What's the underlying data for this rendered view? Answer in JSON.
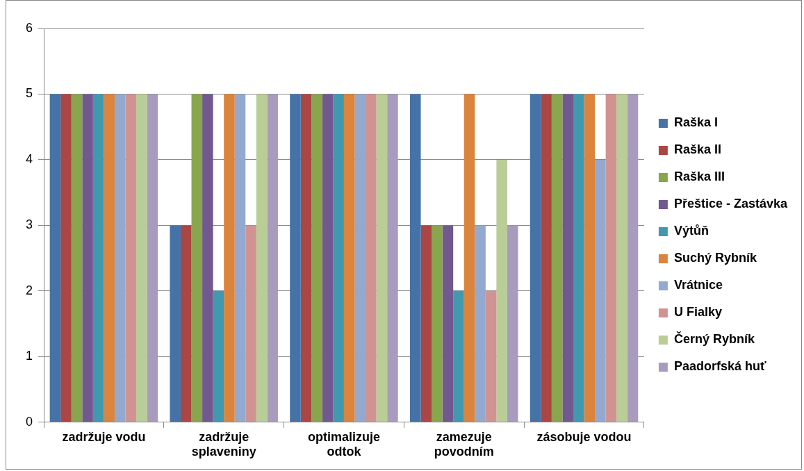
{
  "chart_data": {
    "type": "bar",
    "categories": [
      "zadržuje vodu",
      "zadržuje splaveniny",
      "optimalizuje odtok",
      "zamezuje povodním",
      "zásobuje vodou"
    ],
    "series": [
      {
        "name": "Raška I",
        "color": "#4572a7",
        "values": [
          5,
          3,
          5,
          5,
          5
        ]
      },
      {
        "name": "Raška II",
        "color": "#aa4643",
        "values": [
          5,
          3,
          5,
          3,
          5
        ]
      },
      {
        "name": "Raška III",
        "color": "#89a54e",
        "values": [
          5,
          5,
          5,
          3,
          5
        ]
      },
      {
        "name": "Přeštice - Zastávka",
        "color": "#71588f",
        "values": [
          5,
          5,
          5,
          3,
          5
        ]
      },
      {
        "name": "Výtůň",
        "color": "#4198af",
        "values": [
          5,
          2,
          5,
          2,
          5
        ]
      },
      {
        "name": "Suchý Rybník",
        "color": "#db843d",
        "values": [
          5,
          5,
          5,
          5,
          5
        ]
      },
      {
        "name": "Vrátnice",
        "color": "#93a9cf",
        "values": [
          5,
          5,
          5,
          3,
          4
        ]
      },
      {
        "name": "U Fialky",
        "color": "#d19392",
        "values": [
          5,
          3,
          5,
          2,
          5
        ]
      },
      {
        "name": "Černý Rybník",
        "color": "#b9cd96",
        "values": [
          5,
          5,
          5,
          4,
          5
        ]
      },
      {
        "name": "Paadorfská huť",
        "color": "#a99bbd",
        "values": [
          5,
          5,
          5,
          3,
          5
        ]
      }
    ],
    "ylim": [
      0,
      6
    ],
    "yticks": [
      0,
      1,
      2,
      3,
      4,
      5,
      6
    ],
    "grid": "y",
    "legend": "right"
  }
}
